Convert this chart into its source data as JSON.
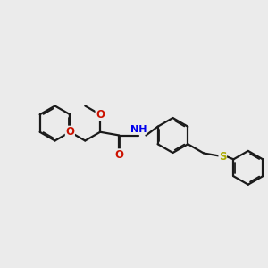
{
  "bg_color": "#ebebeb",
  "bond_color": "#1a1a1a",
  "O_color": "#cc1100",
  "N_color": "#0000ee",
  "S_color": "#aaaa00",
  "bond_width": 1.6,
  "dlw": 1.3,
  "doff": 0.055,
  "figsize": [
    3.0,
    3.0
  ],
  "dpi": 100,
  "xlim": [
    0,
    10
  ],
  "ylim": [
    0,
    10
  ]
}
